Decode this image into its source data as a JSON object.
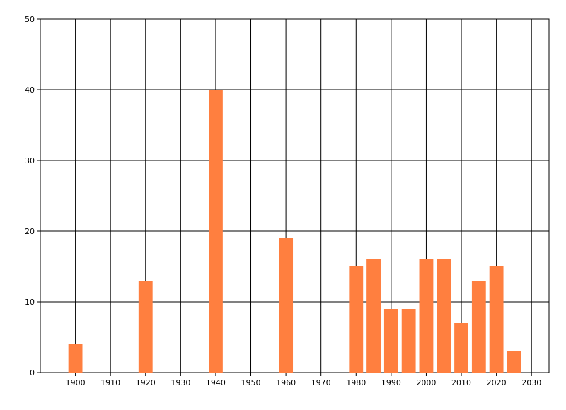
{
  "chart_data": {
    "type": "bar",
    "x": [
      1900,
      1920,
      1940,
      1960,
      1980,
      1985,
      1990,
      1995,
      2000,
      2005,
      2010,
      2015,
      2020,
      2025
    ],
    "values": [
      4,
      13,
      40,
      19,
      15,
      16,
      9,
      9,
      16,
      16,
      7,
      13,
      15,
      3
    ],
    "color": "#ff7f3f",
    "xlim": [
      1890,
      2035
    ],
    "xticks": [
      1900,
      1910,
      1920,
      1930,
      1940,
      1950,
      1960,
      1970,
      1980,
      1990,
      2000,
      2010,
      2020,
      2030
    ],
    "ylim": [
      0,
      50
    ],
    "yticks": [
      0,
      10,
      20,
      30,
      40,
      50
    ],
    "grid": true
  }
}
